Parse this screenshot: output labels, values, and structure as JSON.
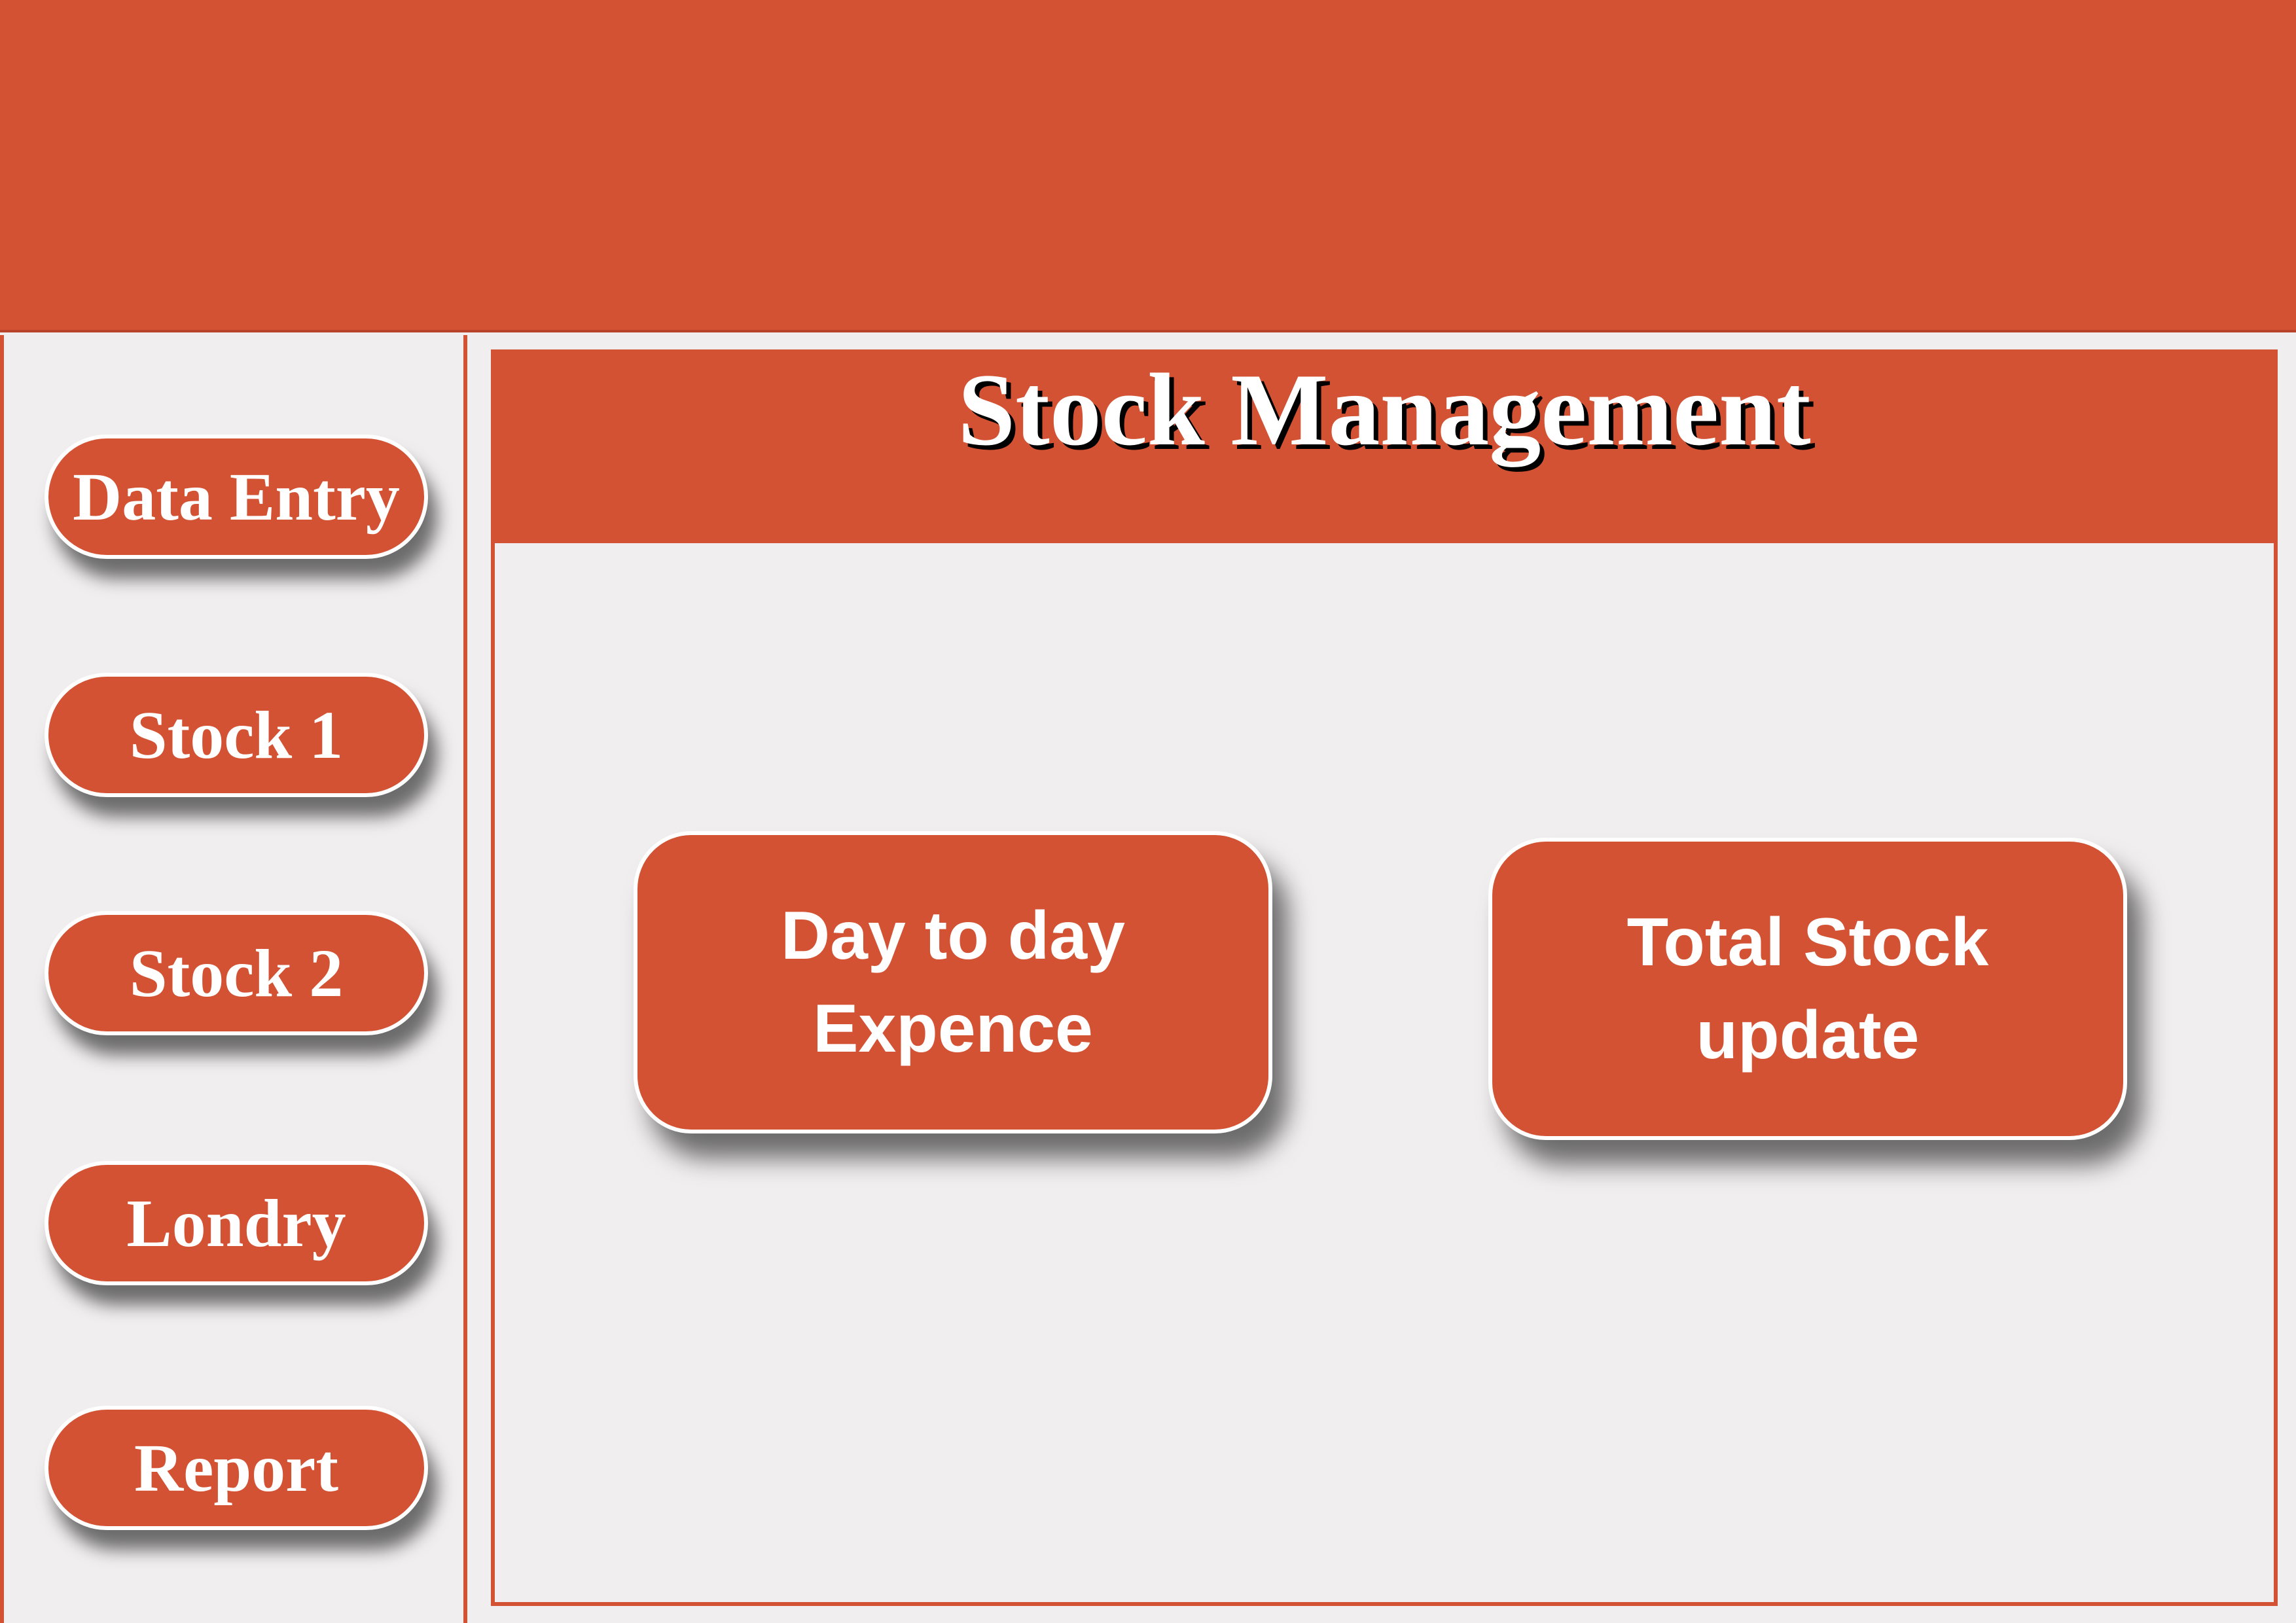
{
  "sidebar": {
    "items": [
      {
        "label": "Data Entry"
      },
      {
        "label": "Stock 1"
      },
      {
        "label": "Stock 2"
      },
      {
        "label": "Londry"
      },
      {
        "label": "Report"
      }
    ]
  },
  "main": {
    "title": "Stock Management",
    "buttons": [
      {
        "line1": "Day to day",
        "line2": "Expence"
      },
      {
        "line1": "Total Stock",
        "line2": "update"
      }
    ]
  },
  "colors": {
    "accent": "#d35233",
    "background": "#f0eeee",
    "text": "#ffffff"
  }
}
